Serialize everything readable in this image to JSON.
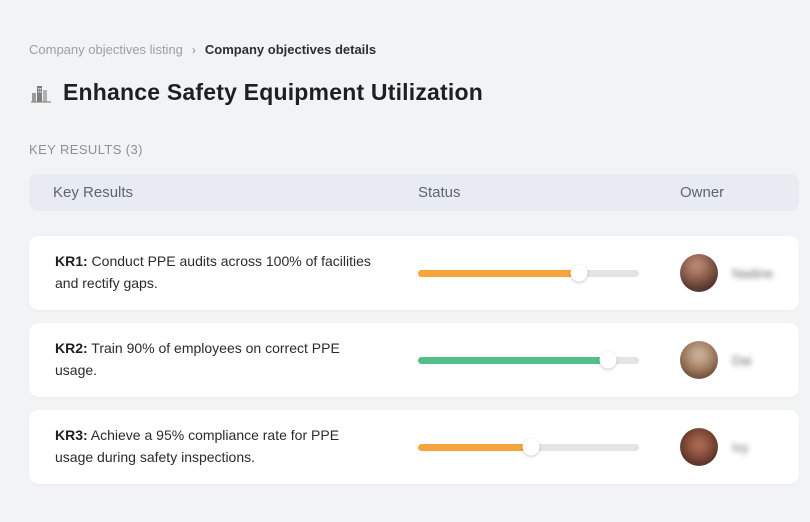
{
  "breadcrumb": {
    "items": [
      {
        "label": "Company objectives listing"
      },
      {
        "label": "Company objectives details"
      }
    ],
    "separator": "›"
  },
  "header": {
    "icon": "buildings-icon",
    "title": "Enhance Safety Equipment Utilization"
  },
  "section": {
    "label": "KEY RESULTS (3)"
  },
  "table": {
    "columns": {
      "key_results": "Key Results",
      "status": "Status",
      "owner": "Owner"
    }
  },
  "rows": [
    {
      "kr_label": "KR1:",
      "description": " Conduct PPE audits across 100% of facilities and rectify gaps.",
      "progress": {
        "percent": 73,
        "color": "#F7A43C"
      },
      "owner": {
        "name": "Nadine"
      }
    },
    {
      "kr_label": "KR2:",
      "description": " Train 90% of employees on correct PPE usage.",
      "progress": {
        "percent": 86,
        "color": "#53BF88"
      },
      "owner": {
        "name": "Dai"
      }
    },
    {
      "kr_label": "KR3:",
      "description": " Achieve a 95% compliance rate for PPE usage during safety inspections.",
      "progress": {
        "percent": 51,
        "color": "#F7A43C"
      },
      "owner": {
        "name": "Ivy"
      }
    }
  ],
  "colors": {
    "accent_orange": "#F7A43C",
    "accent_green": "#53BF88",
    "progress_track": "#e4e4e5",
    "table_header_bg": "#e8ebf1",
    "page_bg": "#f2f3f4"
  }
}
